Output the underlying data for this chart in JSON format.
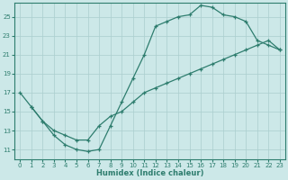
{
  "xlabel": "Humidex (Indice chaleur)",
  "bg_color": "#cce8e8",
  "line_color": "#2e7d6e",
  "grid_color": "#aacece",
  "xlim": [
    -0.5,
    23.5
  ],
  "ylim": [
    10.0,
    26.5
  ],
  "xticks": [
    0,
    1,
    2,
    3,
    4,
    5,
    6,
    7,
    8,
    9,
    10,
    11,
    12,
    13,
    14,
    15,
    16,
    17,
    18,
    19,
    20,
    21,
    22,
    23
  ],
  "yticks": [
    11,
    13,
    15,
    17,
    19,
    21,
    23,
    25
  ],
  "line1_x": [
    0,
    1,
    2,
    3,
    4,
    5,
    6,
    7,
    8,
    9,
    10,
    11,
    12,
    13,
    14,
    15,
    16,
    17,
    18,
    19,
    20,
    21,
    22,
    23
  ],
  "line1_y": [
    17.0,
    15.5,
    14.0,
    12.5,
    11.5,
    11.0,
    10.8,
    11.0,
    13.5,
    16.0,
    18.5,
    21.0,
    24.0,
    24.5,
    25.0,
    25.2,
    26.2,
    26.0,
    25.2,
    25.0,
    24.5,
    22.5,
    22.0,
    21.5
  ],
  "line2_x": [
    1,
    2,
    3,
    4,
    5,
    6,
    7,
    8,
    9,
    10,
    11,
    12,
    13,
    14,
    15,
    16,
    17,
    18,
    19,
    20,
    21,
    22,
    23
  ],
  "line2_y": [
    15.5,
    14.0,
    13.0,
    12.5,
    12.0,
    12.0,
    13.5,
    14.5,
    15.0,
    16.0,
    17.0,
    17.5,
    18.0,
    18.5,
    19.0,
    19.5,
    20.0,
    20.5,
    21.0,
    21.5,
    22.0,
    22.5,
    21.5
  ]
}
